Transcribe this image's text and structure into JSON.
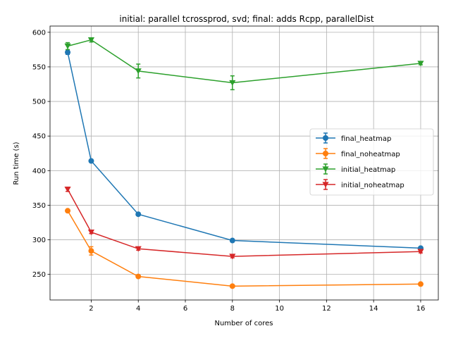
{
  "chart_data": {
    "type": "line",
    "title": "initial: parallel tcrossprod, svd; final: adds Rcpp, parallelDist",
    "xlabel": "Number of cores",
    "ylabel": "Run time (s)",
    "xlim": [
      0.25,
      16.75
    ],
    "ylim": [
      213,
      609
    ],
    "xticks": [
      2,
      4,
      6,
      8,
      10,
      12,
      14,
      16
    ],
    "yticks": [
      250,
      300,
      350,
      400,
      450,
      500,
      550,
      600
    ],
    "grid": true,
    "legend_position": "center-right",
    "x": [
      1,
      2,
      4,
      8,
      16
    ],
    "series": [
      {
        "name": "final_heatmap",
        "color": "#1f77b4",
        "marker": "circle",
        "values": [
          571,
          414,
          337,
          299,
          288
        ],
        "err": [
          3,
          2,
          2,
          2,
          1.5
        ]
      },
      {
        "name": "final_noheatmap",
        "color": "#ff7f0e",
        "marker": "circle",
        "values": [
          342,
          284,
          247,
          233,
          236
        ],
        "err": [
          2,
          6,
          2,
          1.5,
          1.5
        ]
      },
      {
        "name": "initial_heatmap",
        "color": "#2ca02c",
        "marker": "triangle-down",
        "values": [
          580,
          589,
          544,
          527,
          555
        ],
        "err": [
          5,
          3,
          10,
          10,
          2
        ]
      },
      {
        "name": "initial_noheatmap",
        "color": "#d62728",
        "marker": "triangle-down",
        "values": [
          373,
          311,
          287,
          276,
          283
        ],
        "err": [
          3,
          2,
          2,
          2,
          2
        ]
      }
    ]
  }
}
